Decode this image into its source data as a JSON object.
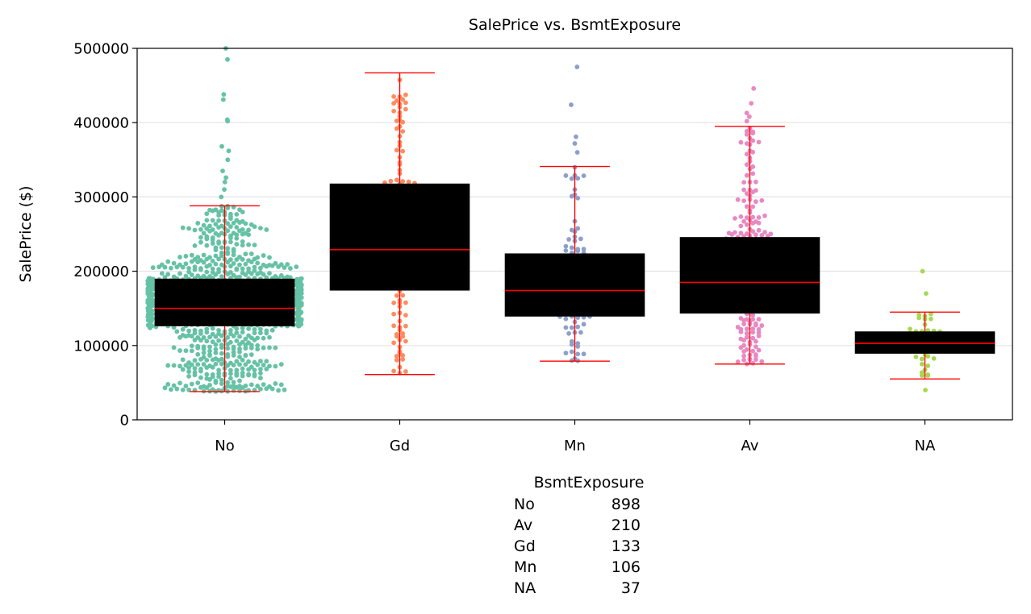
{
  "chart_data": {
    "type": "box+swarm",
    "title": "SalePrice vs. BsmtExposure",
    "xlabel": "",
    "ylabel": "SalePrice ($)",
    "ylim": [
      0,
      500000
    ],
    "yticks": [
      0,
      100000,
      200000,
      300000,
      400000,
      500000
    ],
    "ytick_labels": [
      "0",
      "100000",
      "200000",
      "300000",
      "400000",
      "500000"
    ],
    "grid": "horizontal",
    "categories": [
      "No",
      "Gd",
      "Mn",
      "Av",
      "NA"
    ],
    "colors": [
      "#66c2a5",
      "#fc8d62",
      "#8da0cb",
      "#e78ac3",
      "#a6d854"
    ],
    "box_color": "#000000",
    "whisker_color": "#ff0000",
    "boxes": [
      {
        "category": "No",
        "q1": 126000,
        "median": 150000,
        "q3": 190000,
        "whisker_low": 38000,
        "whisker_high": 288000
      },
      {
        "category": "Gd",
        "q1": 174000,
        "median": 229000,
        "q3": 318000,
        "whisker_low": 61000,
        "whisker_high": 467000
      },
      {
        "category": "Mn",
        "q1": 139000,
        "median": 174000,
        "q3": 224000,
        "whisker_low": 79000,
        "whisker_high": 341000
      },
      {
        "category": "Av",
        "q1": 143000,
        "median": 185000,
        "q3": 246000,
        "whisker_low": 75000,
        "whisker_high": 395000
      },
      {
        "category": "NA",
        "q1": 89000,
        "median": 103000,
        "q3": 119000,
        "whisker_low": 55000,
        "whisker_high": 145000
      }
    ],
    "outliers": [
      {
        "category": "No",
        "values": [
          300000,
          310000,
          320000,
          326000,
          335000,
          350000,
          362000,
          368000,
          402000,
          404000,
          431000,
          438000,
          485000,
          500000
        ]
      },
      {
        "category": "Mn",
        "values": [
          360000,
          372000,
          381000,
          424000,
          475000
        ]
      },
      {
        "category": "Av",
        "values": [
          402000,
          408000,
          413000,
          426000,
          446000
        ]
      },
      {
        "category": "NA",
        "values": [
          40000,
          170000,
          200000
        ]
      }
    ]
  },
  "value_counts": {
    "header": "BsmtExposure",
    "rows": [
      {
        "key": "No",
        "count": "898"
      },
      {
        "key": "Av",
        "count": "210"
      },
      {
        "key": "Gd",
        "count": "133"
      },
      {
        "key": "Mn",
        "count": "106"
      },
      {
        "key": "NA",
        "count": "37"
      }
    ]
  }
}
